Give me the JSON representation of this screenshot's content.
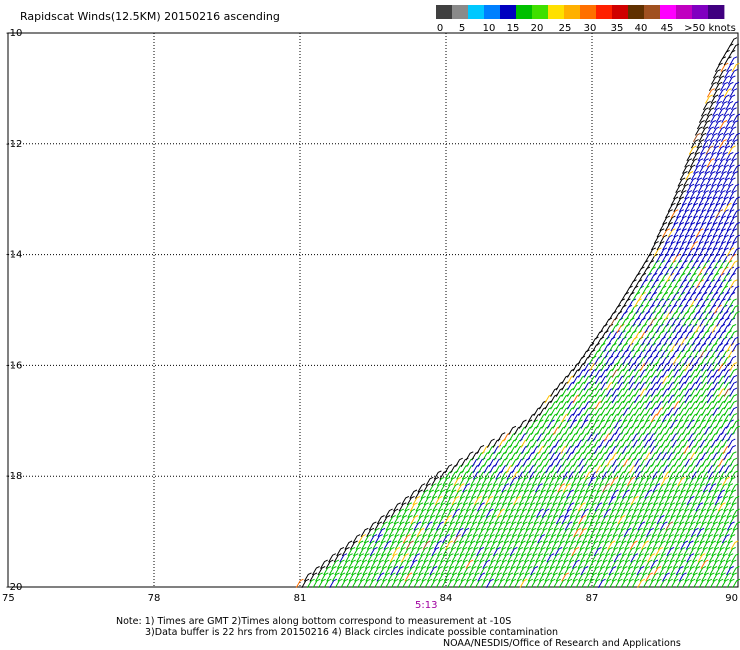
{
  "chart_data": {
    "type": "scatter",
    "title": "Rapidscat Winds(12.5KM) 20150216 ascending",
    "x_ticks": [
      "75",
      "78",
      "81",
      "84",
      "87",
      "90"
    ],
    "y_ticks": [
      "-10",
      "-12",
      "-14",
      "-16",
      "-18",
      "-20"
    ],
    "xlim": [
      75,
      90
    ],
    "ylim": [
      -20,
      -10
    ],
    "grid": true,
    "legend": {
      "labels": [
        "0",
        "5",
        "10",
        "15",
        "20",
        "25",
        "30",
        "35",
        "40",
        "45",
        ">50 knots"
      ],
      "colors": [
        "#404040",
        "#8a8a8a",
        "#00c8ff",
        "#0080ff",
        "#0000c0",
        "#00c000",
        "#40e000",
        "#ffe000",
        "#ffb000",
        "#ff7000",
        "#ff2000",
        "#d00000",
        "#603000",
        "#a05020",
        "#ff00ff",
        "#c000c0",
        "#8000c0",
        "#400080"
      ]
    },
    "time_label": "5:13",
    "notes": [
      "Note: 1) Times are GMT 2)Times along bottom correspond to measurement at -10S",
      "3)Data buffer is 22 hrs from 20150216 4) Black circles indicate possible contamination",
      "NOAA/NESDIS/Office of Research and Applications"
    ],
    "swath": {
      "west_edge": [
        [
          80.9,
          -20
        ],
        [
          83.8,
          -18
        ],
        [
          85.7,
          -17
        ],
        [
          86.7,
          -16
        ],
        [
          87.5,
          -15
        ],
        [
          88.2,
          -14
        ],
        [
          88.7,
          -13
        ],
        [
          89.1,
          -12
        ],
        [
          89.6,
          -10.6
        ],
        [
          90,
          -10
        ]
      ],
      "dominant_speed_ranges_knots": [
        "15-20 (green) in south",
        "10-15 (blue) in north",
        "20-30 (yellow/orange) isolated"
      ]
    }
  }
}
